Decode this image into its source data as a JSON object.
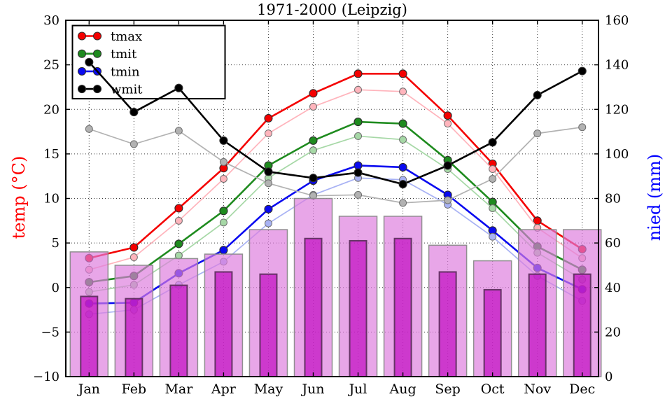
{
  "figure": {
    "title": "1971-2000 (Leipzig)",
    "y_left_label": "temp (°C)",
    "y_right_label": "nied (mm)",
    "y_left_label_color": "#ff0000",
    "y_right_label_color": "#0000ff"
  },
  "axes": {
    "x_ticklabels": [
      "Jan",
      "Feb",
      "Mar",
      "Apr",
      "May",
      "Jun",
      "Jul",
      "Aug",
      "Sep",
      "Oct",
      "Nov",
      "Dec"
    ],
    "y_left_ticklabels": [
      "30",
      "25",
      "20",
      "15",
      "10",
      "5",
      "0",
      "−5",
      "−10"
    ],
    "y_right_ticklabels": [
      "160",
      "140",
      "120",
      "100",
      "80",
      "60",
      "40",
      "20",
      "0"
    ]
  },
  "legend": {
    "labels": [
      "tmax",
      "tmit",
      "tmin",
      "wmit"
    ]
  },
  "chart_data": {
    "type": "combo (bar + line, twin y-axes climate chart)",
    "title": "1971-2000 (Leipzig)",
    "categories": [
      "Jan",
      "Feb",
      "Mar",
      "Apr",
      "May",
      "Jun",
      "Jul",
      "Aug",
      "Sep",
      "Oct",
      "Nov",
      "Dec"
    ],
    "y_left": {
      "label": "temp (°C)",
      "range": [
        -10,
        30
      ],
      "tick_step": 5
    },
    "y_right": {
      "label": "nied (mm)",
      "range": [
        0,
        160
      ],
      "tick_step": 20
    },
    "grid": "dotted, both axes",
    "legend_position": "upper left",
    "line_series": [
      {
        "name": "tmax",
        "axis": "left",
        "style": "bold",
        "color": "#f40000",
        "values": [
          3.3,
          4.5,
          8.9,
          13.4,
          19.0,
          21.8,
          24.0,
          24.0,
          19.3,
          13.9,
          7.5,
          4.3
        ]
      },
      {
        "name": "tmax-light",
        "axis": "left",
        "style": "light",
        "color": "#ffb4bc",
        "values": [
          2.0,
          3.4,
          7.5,
          12.2,
          17.3,
          20.3,
          22.2,
          22.0,
          18.4,
          13.3,
          6.7,
          3.3
        ]
      },
      {
        "name": "tmit",
        "axis": "left",
        "style": "bold",
        "color": "#1e8b1e",
        "values": [
          0.6,
          1.3,
          4.9,
          8.6,
          13.7,
          16.5,
          18.6,
          18.4,
          14.3,
          9.6,
          4.6,
          2.0
        ]
      },
      {
        "name": "tmit-light",
        "axis": "left",
        "style": "light",
        "color": "#a6d8a6",
        "values": [
          -0.5,
          0.3,
          3.6,
          7.3,
          12.3,
          15.4,
          17.0,
          16.6,
          13.3,
          8.9,
          3.9,
          0.9
        ]
      },
      {
        "name": "tmin",
        "axis": "left",
        "style": "bold",
        "color": "#0a0af0",
        "values": [
          -1.8,
          -1.7,
          1.6,
          4.2,
          8.8,
          12.0,
          13.7,
          13.5,
          10.4,
          6.4,
          2.2,
          -0.2
        ]
      },
      {
        "name": "tmin-light",
        "axis": "left",
        "style": "light",
        "color": "#a8b2f4",
        "values": [
          -3.0,
          -2.5,
          0.3,
          2.9,
          7.2,
          10.4,
          12.3,
          12.1,
          9.3,
          5.7,
          1.3,
          -1.5
        ]
      },
      {
        "name": "wmit",
        "axis": "left",
        "style": "bold",
        "color": "#000000",
        "values": [
          25.3,
          19.7,
          22.4,
          16.5,
          13.0,
          12.3,
          12.9,
          11.6,
          13.7,
          16.3,
          21.6,
          24.3
        ]
      },
      {
        "name": "wmit-light",
        "axis": "left",
        "style": "light",
        "color": "#b2b2b2",
        "values": [
          17.8,
          16.1,
          17.6,
          14.1,
          11.7,
          10.3,
          10.4,
          9.5,
          9.8,
          12.2,
          17.3,
          18.0
        ]
      }
    ],
    "bar_series": [
      {
        "name": "nied-wide-light",
        "axis": "right",
        "color": "#dd7cdd",
        "edge": "#8a8a8a",
        "values": [
          56,
          50,
          53,
          55,
          66,
          80,
          72,
          72,
          59,
          52,
          66,
          66
        ]
      },
      {
        "name": "nied-narrow-dark",
        "axis": "right",
        "color": "#bf00bf",
        "edge": "#5f2f5f",
        "values": [
          36,
          35,
          41,
          47,
          46,
          62,
          61,
          62,
          47,
          39,
          46,
          46
        ]
      }
    ]
  }
}
